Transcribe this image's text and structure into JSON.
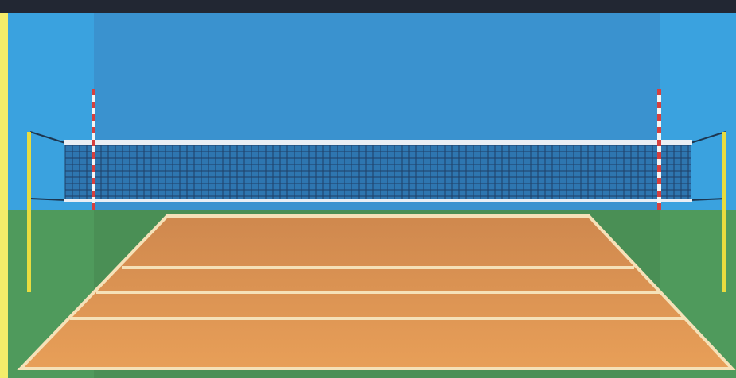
{
  "scene": {
    "kind": "volleyball-court",
    "colors": {
      "frame": "#f4ec6a",
      "top_bar": "#222733",
      "sky": "#3aa2df",
      "sky_center": "#3a92cf",
      "ground": "#4f9a5c",
      "ground_center": "#4a8f55",
      "court_far": "#cf884e",
      "court_near": "#e89f58",
      "court_line": "#f5e1b8",
      "net_band": "#e9eef4",
      "net_mesh": "#1f3f66",
      "net_fill": "#2e76b0",
      "antenna_red": "#d6403f",
      "antenna_white": "#f4f4f4",
      "post": "#e8dc3f",
      "cable": "#1d3650"
    },
    "icons": [
      "left-post-icon",
      "right-post-icon",
      "left-antenna-icon",
      "right-antenna-icon",
      "net-icon",
      "court-icon"
    ]
  }
}
